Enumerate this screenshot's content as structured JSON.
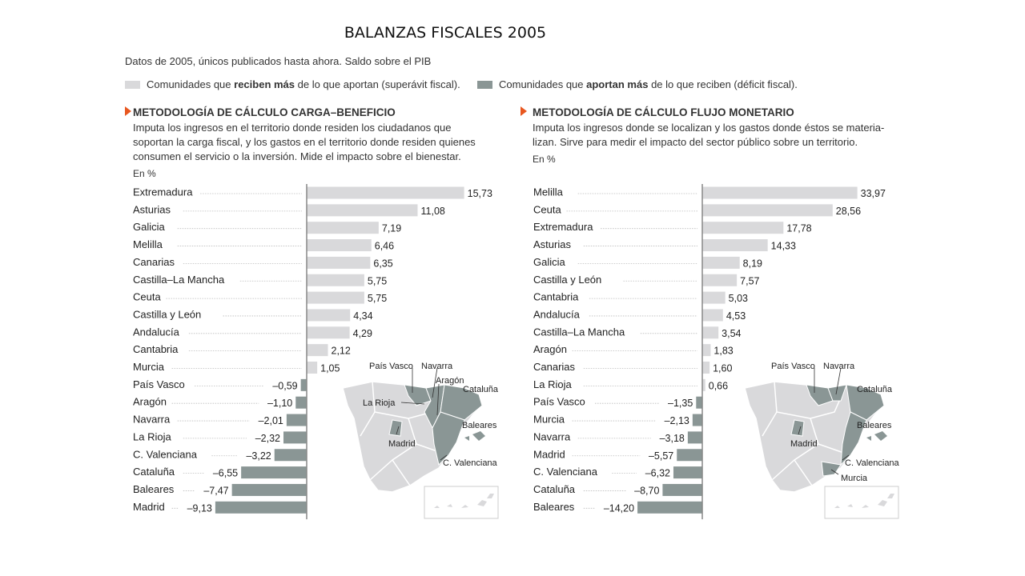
{
  "page": {
    "title": "BALANZAS FISCALES 2005",
    "subtitle": "Datos de 2005, únicos publicados hasta ahora. Saldo sobre el PIB",
    "legend": [
      {
        "pre": "Comunidades que ",
        "bold": "reciben más",
        "post": " de lo que aportan (superávit fiscal).",
        "color": "#d9d9db"
      },
      {
        "pre": "Comunidades que ",
        "bold": "aportan más",
        "post": " de lo que reciben (déficit fiscal).",
        "color": "#8a9695"
      }
    ]
  },
  "colors": {
    "surplus": "#d9d9db",
    "deficit": "#8a9695",
    "accent": "#e8571f"
  },
  "left": {
    "title": "METODOLOGÍA DE CÁLCULO CARGA–BENEFICIO",
    "desc": [
      "Imputa los ingresos en el territorio donde residen los ciudadanos que",
      "soportan la carga fiscal, y los gastos en el territorio donde residen quienes",
      "consumen el servicio o la inversión. Mide el impacto sobre el bienestar."
    ],
    "unit": "En %",
    "map_labels": [
      "País Vasco",
      "Navarra",
      "Aragón",
      "Cataluña",
      "La Rioja",
      "Baleares",
      "Madrid",
      "C. Valenciana"
    ]
  },
  "right": {
    "title": "METODOLOGÍA DE CÁLCULO FLUJO MONETARIO",
    "desc": [
      "Imputa los ingresos donde se localizan y los gastos donde éstos se materia-",
      "lizan. Sirve para medir el impacto del sector público sobre un territorio."
    ],
    "unit": "En %",
    "map_labels": [
      "País Vasco",
      "Navarra",
      "Cataluña",
      "Baleares",
      "Madrid",
      "C. Valenciana",
      "Murcia"
    ]
  },
  "chart_data": [
    {
      "type": "bar",
      "categories": [
        "Extremadura",
        "Asturias",
        "Galicia",
        "Melilla",
        "Canarias",
        "Castilla–La Mancha",
        "Ceuta",
        "Castilla y León",
        "Andalucía",
        "Cantabria",
        "Murcia",
        "País Vasco",
        "Aragón",
        "Navarra",
        "La Rioja",
        "C. Valenciana",
        "Cataluña",
        "Baleares",
        "Madrid"
      ],
      "values": [
        15.73,
        11.08,
        7.19,
        6.46,
        6.35,
        5.75,
        5.75,
        4.34,
        4.29,
        2.12,
        1.05,
        -0.59,
        -1.1,
        -2.01,
        -2.32,
        -3.22,
        -6.55,
        -7.47,
        -9.13
      ],
      "labels": [
        "15,73",
        "11,08",
        "7,19",
        "6,46",
        "6,35",
        "5,75",
        "5,75",
        "4,34",
        "4,29",
        "2,12",
        "1,05",
        "–0,59",
        "–1,10",
        "–2,01",
        "–2,32",
        "–3,22",
        "–6,55",
        "–7,47",
        "–9,13"
      ],
      "orientation": "horizontal"
    },
    {
      "type": "bar",
      "categories": [
        "Melilla",
        "Ceuta",
        "Extremadura",
        "Asturias",
        "Galicia",
        "Castilla y León",
        "Cantabria",
        "Andalucía",
        "Castilla–La Mancha",
        "Aragón",
        "Canarias",
        "La Rioja",
        "País Vasco",
        "Murcia",
        "Navarra",
        "Madrid",
        "C. Valenciana",
        "Cataluña",
        "Baleares"
      ],
      "values": [
        33.97,
        28.56,
        17.78,
        14.33,
        8.19,
        7.57,
        5.03,
        4.53,
        3.54,
        1.83,
        1.6,
        0.66,
        -1.35,
        -2.13,
        -3.18,
        -5.57,
        -6.32,
        -8.7,
        -14.2
      ],
      "labels": [
        "33,97",
        "28,56",
        "17,78",
        "14,33",
        "8,19",
        "7,57",
        "5,03",
        "4,53",
        "3,54",
        "1,83",
        "1,60",
        "0,66",
        "–1,35",
        "–2,13",
        "–3,18",
        "–5,57",
        "–6,32",
        "–8,70",
        "–14,20"
      ],
      "orientation": "horizontal"
    }
  ]
}
